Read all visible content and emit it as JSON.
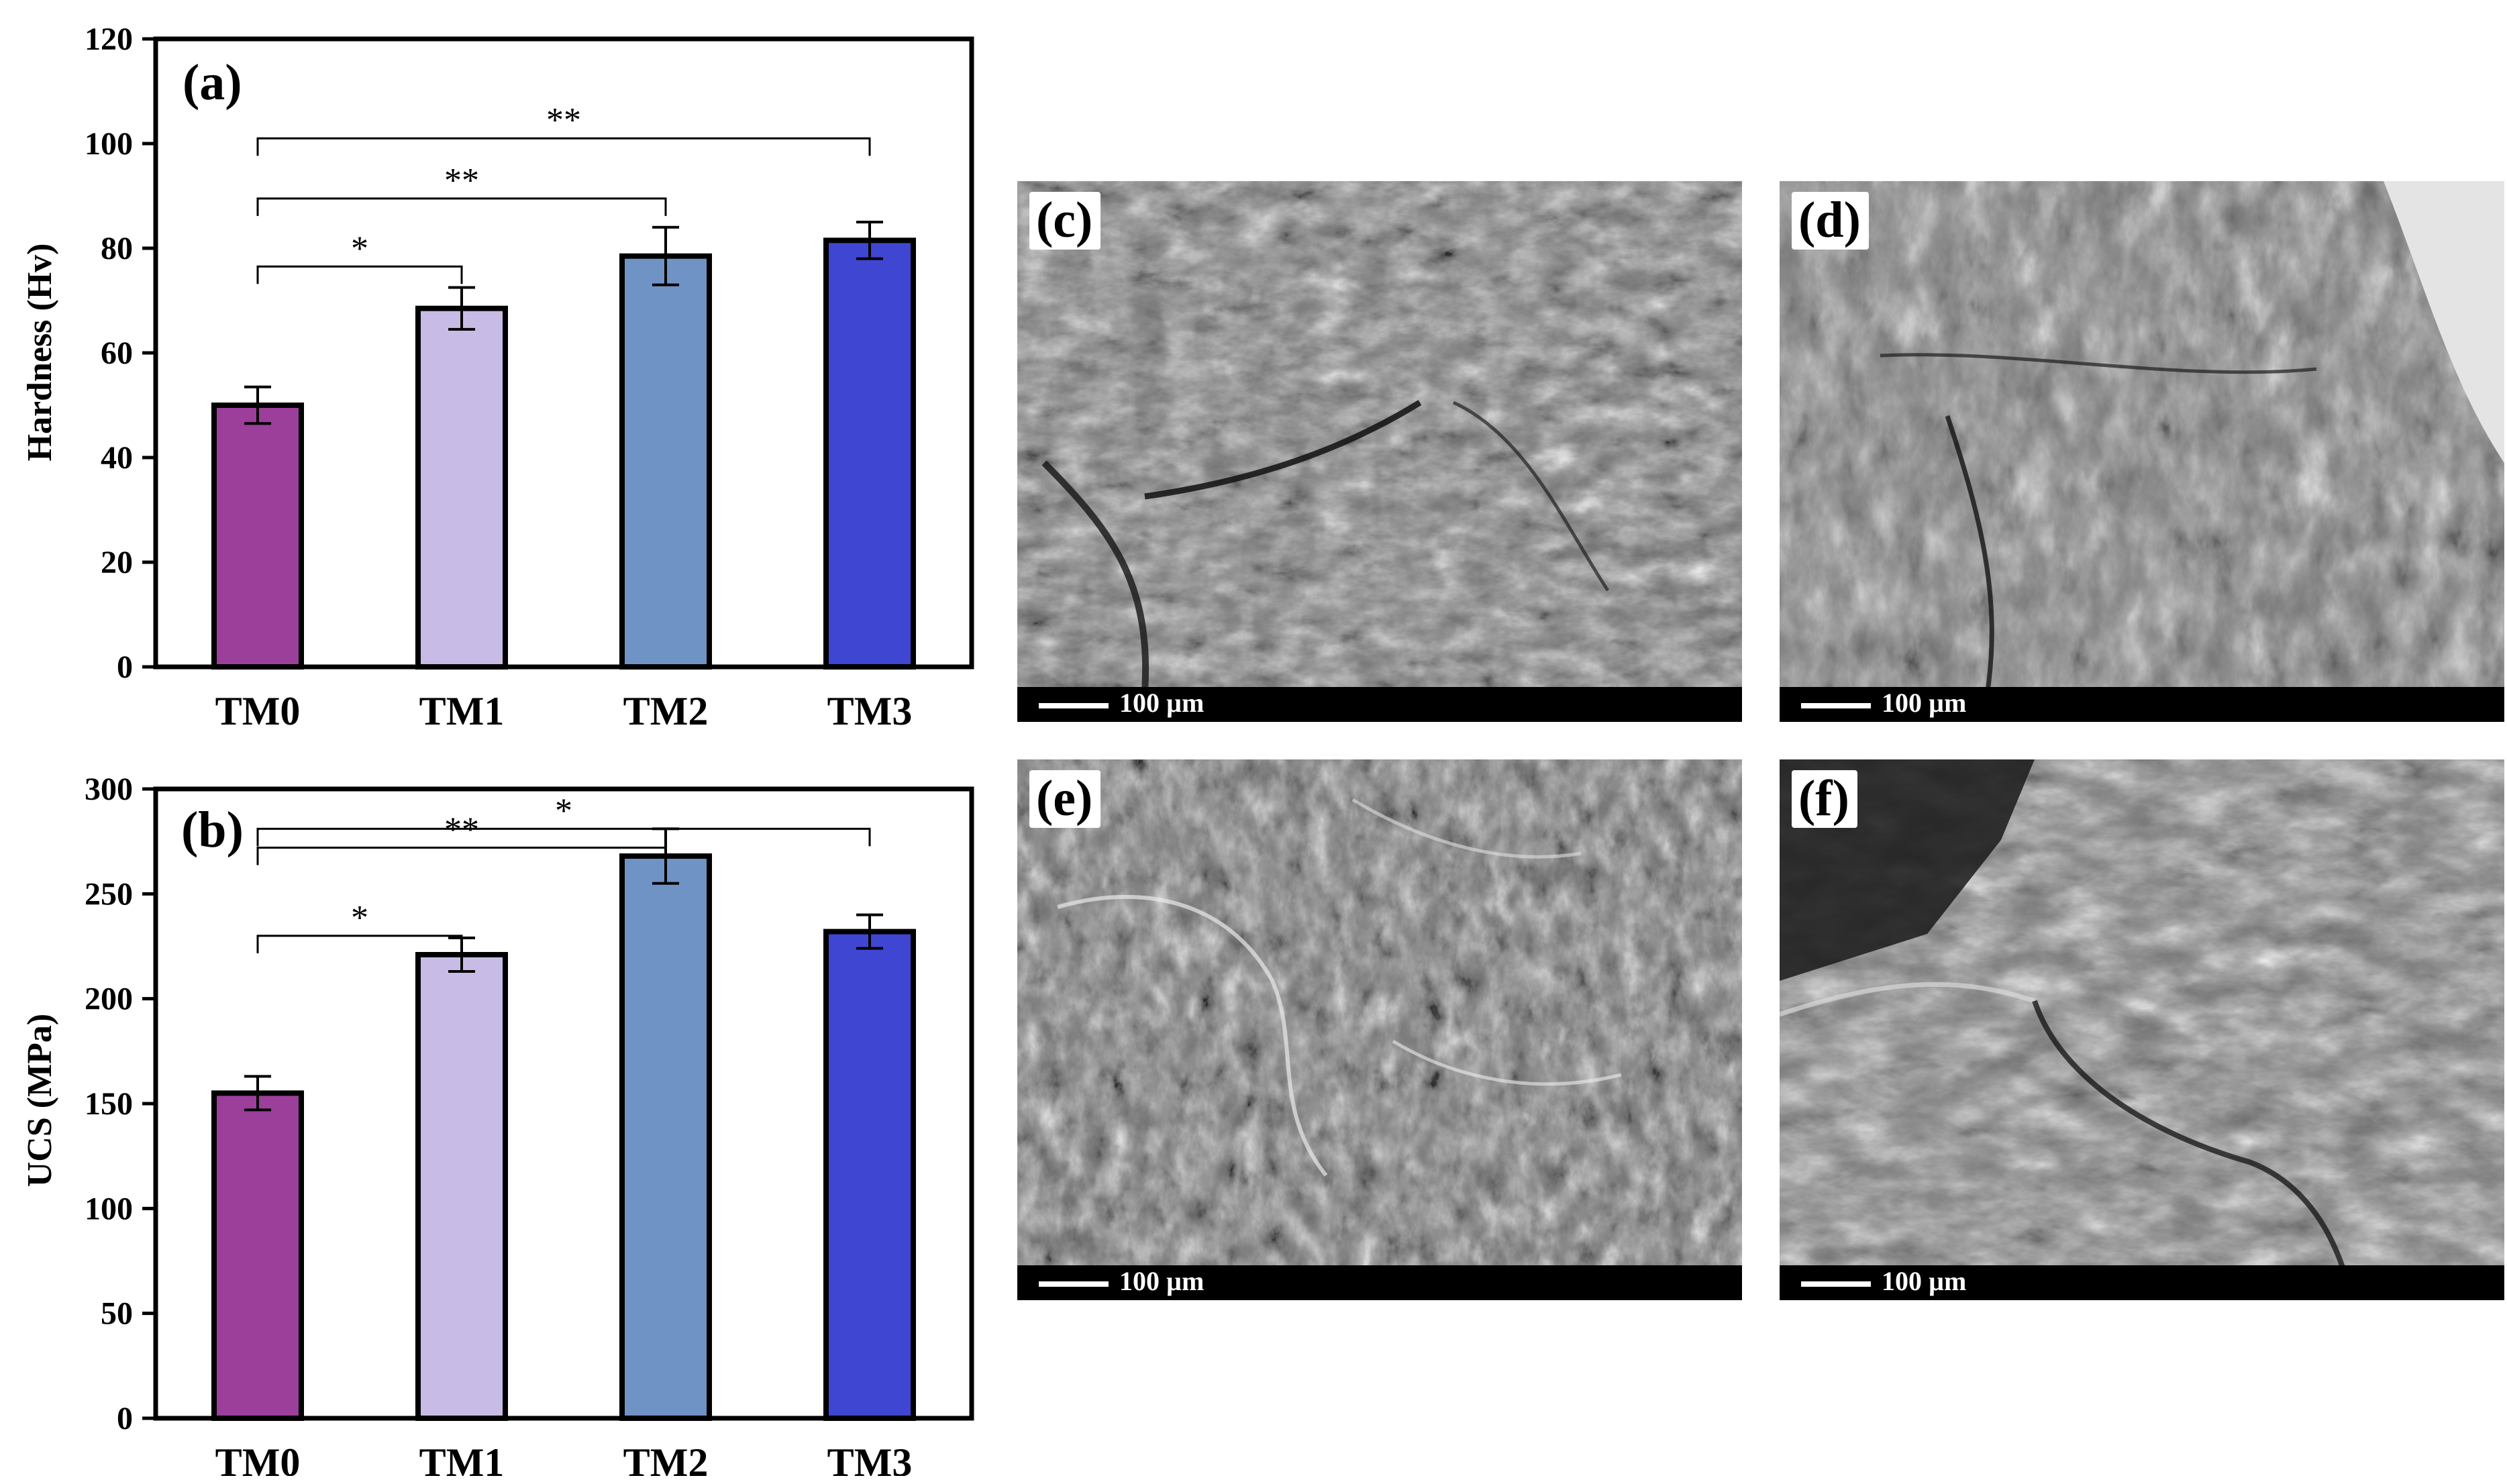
{
  "chart_data": [
    {
      "type": "bar",
      "panel_label": "(a)",
      "categories": [
        "TM0",
        "TM1",
        "TM2",
        "TM3"
      ],
      "values": [
        50,
        68.5,
        78.5,
        81.5
      ],
      "errors": [
        3.5,
        4,
        5.5,
        3.5
      ],
      "ylabel": "Hardness (Hv)",
      "xlabel": "",
      "ylim": [
        0,
        120
      ],
      "yticks": [
        0,
        20,
        40,
        60,
        80,
        100,
        120
      ],
      "colors": [
        "#9b3f9b",
        "#c8bce6",
        "#6f93c4",
        "#3f46d2"
      ],
      "significance": [
        {
          "from": 0,
          "to": 1,
          "label": "*",
          "y": 76.5
        },
        {
          "from": 0,
          "to": 2,
          "label": "**",
          "y": 89.5
        },
        {
          "from": 0,
          "to": 3,
          "label": "**",
          "y": 101
        }
      ]
    },
    {
      "type": "bar",
      "panel_label": "(b)",
      "categories": [
        "TM0",
        "TM1",
        "TM2",
        "TM3"
      ],
      "values": [
        155,
        221,
        268,
        232
      ],
      "errors": [
        8,
        8,
        13,
        8
      ],
      "ylabel": "UCS (MPa)",
      "xlabel": "",
      "ylim": [
        0,
        300
      ],
      "yticks": [
        0,
        50,
        100,
        150,
        200,
        250,
        300
      ],
      "colors": [
        "#9b3f9b",
        "#c8bce6",
        "#6f93c4",
        "#3f46d2"
      ],
      "significance": [
        {
          "from": 0,
          "to": 1,
          "label": "*",
          "y": 230
        },
        {
          "from": 0,
          "to": 2,
          "label": "**",
          "y": 272
        },
        {
          "from": 0,
          "to": 3,
          "label": "*",
          "y": 281
        }
      ]
    }
  ],
  "micrographs": [
    {
      "label": "(c)",
      "scale": "100 µm"
    },
    {
      "label": "(d)",
      "scale": "100 µm"
    },
    {
      "label": "(e)",
      "scale": "100 µm"
    },
    {
      "label": "(f)",
      "scale": "100 µm"
    }
  ]
}
